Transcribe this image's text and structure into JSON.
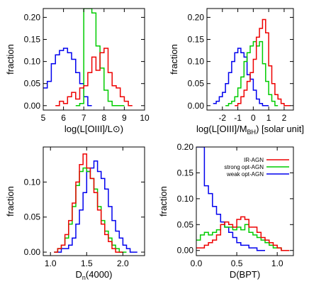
{
  "chart_data": [
    {
      "type": "line",
      "step": true,
      "xlabel": "log(L[OIII]/L⊙)",
      "ylabel": "fraction",
      "xlim": [
        5,
        10
      ],
      "ylim": [
        -0.01,
        0.22
      ],
      "xticks": [
        5,
        6,
        7,
        8,
        9,
        10
      ],
      "yticks": [
        0.0,
        0.05,
        0.1,
        0.15,
        0.2
      ],
      "ytick_labels": [
        "0.00",
        "0.05",
        "0.10",
        "0.15",
        "0.20"
      ],
      "xtick_labels": [
        "5",
        "6",
        "7",
        "8",
        "9",
        "10"
      ],
      "grid": false,
      "series": [
        {
          "color": "#0000ee",
          "x": [
            5.0,
            5.2,
            5.4,
            5.6,
            5.8,
            6.0,
            6.2,
            6.4,
            6.6,
            6.8,
            7.0,
            7.2
          ],
          "values": [
            0.04,
            0.055,
            0.095,
            0.115,
            0.125,
            0.13,
            0.12,
            0.105,
            0.075,
            0.05,
            0.02,
            0.0
          ]
        },
        {
          "color": "#00cc00",
          "x": [
            6.6,
            6.8,
            7.0,
            7.2,
            7.4,
            7.6,
            7.8,
            8.0,
            8.2,
            8.4,
            8.6,
            8.8
          ],
          "values": [
            0.0,
            0.005,
            0.22,
            0.22,
            0.21,
            0.135,
            0.085,
            0.035,
            0.01,
            0.0,
            0.0,
            0.0
          ]
        },
        {
          "color": "#ee0000",
          "x": [
            5.6,
            5.8,
            6.0,
            6.2,
            6.4,
            6.6,
            6.8,
            7.0,
            7.2,
            7.4,
            7.6,
            7.8,
            8.0,
            8.2,
            8.4,
            8.6,
            8.8,
            9.0,
            9.2
          ],
          "values": [
            0.0,
            0.01,
            0.005,
            0.02,
            0.03,
            0.015,
            0.04,
            0.045,
            0.075,
            0.11,
            0.08,
            0.12,
            0.13,
            0.075,
            0.045,
            0.04,
            0.02,
            0.01,
            0.0
          ]
        }
      ]
    },
    {
      "type": "line",
      "step": true,
      "xlabel": "log(L[OIII]/M",
      "xlabel_sub": "BH",
      "xlabel_tail": ") [solar unit]",
      "ylabel": "fraction",
      "xlim": [
        -3,
        2.6
      ],
      "ylim": [
        -0.01,
        0.22
      ],
      "xticks": [
        -2,
        -1,
        0,
        1,
        2
      ],
      "xtick_labels": [
        "-2",
        "-1",
        "0",
        "1",
        "2"
      ],
      "yticks": [
        0.0,
        0.05,
        0.1,
        0.15,
        0.2
      ],
      "ytick_labels": [
        "0.00",
        "0.05",
        "0.10",
        "0.15",
        "0.20"
      ],
      "grid": false,
      "series": [
        {
          "color": "#0000ee",
          "x": [
            -2.6,
            -2.4,
            -2.2,
            -2.0,
            -1.8,
            -1.6,
            -1.4,
            -1.2,
            -1.0,
            -0.8,
            -0.6,
            -0.4,
            -0.2,
            0.0,
            0.2,
            0.4,
            0.6,
            0.8
          ],
          "values": [
            0.005,
            0.01,
            0.02,
            0.03,
            0.05,
            0.075,
            0.1,
            0.12,
            0.13,
            0.12,
            0.11,
            0.07,
            0.06,
            0.035,
            0.015,
            0.005,
            0.0,
            0.0
          ]
        },
        {
          "color": "#00cc00",
          "x": [
            -1.8,
            -1.6,
            -1.4,
            -1.2,
            -1.0,
            -0.8,
            -0.6,
            -0.4,
            -0.2,
            0.0,
            0.2,
            0.4,
            0.6,
            0.8,
            1.0,
            1.2,
            1.4
          ],
          "values": [
            0.0,
            0.005,
            0.01,
            0.02,
            0.04,
            0.065,
            0.1,
            0.12,
            0.135,
            0.145,
            0.135,
            0.145,
            0.095,
            0.055,
            0.025,
            0.01,
            0.0
          ]
        },
        {
          "color": "#ee0000",
          "x": [
            -1.2,
            -1.0,
            -0.8,
            -0.6,
            -0.4,
            -0.2,
            0.0,
            0.2,
            0.4,
            0.6,
            0.8,
            1.0,
            1.2,
            1.4,
            1.6,
            1.8,
            2.0,
            2.2
          ],
          "values": [
            0.0,
            0.005,
            0.02,
            0.035,
            0.055,
            0.075,
            0.105,
            0.155,
            0.175,
            0.195,
            0.165,
            0.09,
            0.05,
            0.025,
            0.015,
            0.005,
            0.0,
            0.0
          ]
        }
      ]
    },
    {
      "type": "line",
      "step": true,
      "xlabel": "D",
      "xlabel_sub": "n",
      "xlabel_tail": "(4000)",
      "ylabel": "fraction",
      "xlim": [
        0.9,
        2.3
      ],
      "ylim": [
        -0.005,
        0.15
      ],
      "xticks": [
        1.0,
        1.5,
        2.0
      ],
      "xtick_labels": [
        "1.0",
        "1.5",
        "2.0"
      ],
      "yticks": [
        0.0,
        0.05,
        0.1
      ],
      "ytick_labels": [
        "0.00",
        "0.05",
        "0.10"
      ],
      "grid": false,
      "series": [
        {
          "color": "#0000ee",
          "x": [
            1.05,
            1.1,
            1.15,
            1.2,
            1.25,
            1.3,
            1.35,
            1.4,
            1.45,
            1.5,
            1.55,
            1.6,
            1.65,
            1.7,
            1.75,
            1.8,
            1.85,
            1.9,
            1.95,
            2.0,
            2.05,
            2.1,
            2.15
          ],
          "values": [
            0.0,
            0.0,
            0.005,
            0.005,
            0.01,
            0.02,
            0.04,
            0.06,
            0.085,
            0.115,
            0.12,
            0.13,
            0.115,
            0.105,
            0.09,
            0.065,
            0.045,
            0.03,
            0.02,
            0.01,
            0.005,
            0.0,
            0.0
          ]
        },
        {
          "color": "#00cc00",
          "x": [
            1.05,
            1.1,
            1.15,
            1.2,
            1.25,
            1.3,
            1.35,
            1.4,
            1.45,
            1.5,
            1.55,
            1.6,
            1.65,
            1.7,
            1.75,
            1.8,
            1.85,
            1.9,
            1.95,
            2.0
          ],
          "values": [
            0.0,
            0.005,
            0.01,
            0.02,
            0.04,
            0.065,
            0.095,
            0.115,
            0.12,
            0.115,
            0.105,
            0.09,
            0.065,
            0.045,
            0.03,
            0.02,
            0.01,
            0.005,
            0.0,
            0.0
          ]
        },
        {
          "color": "#ee0000",
          "x": [
            1.05,
            1.1,
            1.15,
            1.2,
            1.25,
            1.3,
            1.35,
            1.4,
            1.45,
            1.5,
            1.55,
            1.6,
            1.65,
            1.7,
            1.75,
            1.8,
            1.85,
            1.9,
            1.95
          ],
          "values": [
            0.0,
            0.005,
            0.01,
            0.025,
            0.045,
            0.07,
            0.1,
            0.125,
            0.14,
            0.12,
            0.105,
            0.085,
            0.06,
            0.04,
            0.025,
            0.015,
            0.005,
            0.0,
            0.0
          ]
        }
      ]
    },
    {
      "type": "line",
      "step": true,
      "xlabel": "D(BPT)",
      "ylabel": "fraction",
      "xlim": [
        0.0,
        1.2
      ],
      "ylim": [
        -0.01,
        0.2
      ],
      "xticks": [
        0.0,
        0.5,
        1.0
      ],
      "xtick_labels": [
        "0.0",
        "0.5",
        "1.0"
      ],
      "yticks": [
        0.0,
        0.05,
        0.1,
        0.15,
        0.2
      ],
      "ytick_labels": [
        "0.00",
        "0.05",
        "0.10",
        "0.15",
        "0.20"
      ],
      "grid": false,
      "legend": {
        "placement": "top-right",
        "entries": [
          {
            "label": "IR-AGN",
            "color": "#ee0000"
          },
          {
            "label": "strong opt-AGN",
            "color": "#00cc00"
          },
          {
            "label": "weak opt-AGN",
            "color": "#0000ee"
          }
        ]
      },
      "series": [
        {
          "color": "#0000ee",
          "x": [
            0.0,
            0.05,
            0.1,
            0.15,
            0.2,
            0.25,
            0.3,
            0.35,
            0.4,
            0.45,
            0.5,
            0.55,
            0.6,
            0.65,
            0.7,
            0.75,
            0.8
          ],
          "values": [
            0.2,
            0.2,
            0.125,
            0.11,
            0.085,
            0.07,
            0.055,
            0.045,
            0.035,
            0.025,
            0.015,
            0.01,
            0.01,
            0.005,
            0.005,
            0.0,
            0.0
          ]
        },
        {
          "color": "#00cc00",
          "x": [
            0.0,
            0.05,
            0.1,
            0.15,
            0.2,
            0.25,
            0.3,
            0.35,
            0.4,
            0.45,
            0.5,
            0.55,
            0.6,
            0.65,
            0.7,
            0.75,
            0.8,
            0.85,
            0.9,
            0.95,
            1.0,
            1.05,
            1.1
          ],
          "values": [
            0.02,
            0.03,
            0.035,
            0.03,
            0.035,
            0.04,
            0.05,
            0.045,
            0.045,
            0.04,
            0.045,
            0.04,
            0.05,
            0.035,
            0.03,
            0.025,
            0.02,
            0.015,
            0.01,
            0.005,
            0.005,
            0.0,
            0.0
          ]
        },
        {
          "color": "#ee0000",
          "x": [
            0.0,
            0.05,
            0.1,
            0.15,
            0.2,
            0.25,
            0.3,
            0.35,
            0.4,
            0.45,
            0.5,
            0.55,
            0.6,
            0.65,
            0.7,
            0.75,
            0.8,
            0.85,
            0.9,
            0.95,
            1.0,
            1.05,
            1.1
          ],
          "values": [
            0.005,
            0.005,
            0.01,
            0.015,
            0.02,
            0.03,
            0.05,
            0.055,
            0.05,
            0.045,
            0.06,
            0.065,
            0.06,
            0.045,
            0.045,
            0.035,
            0.025,
            0.02,
            0.015,
            0.01,
            0.005,
            0.0,
            0.0
          ]
        }
      ]
    }
  ]
}
